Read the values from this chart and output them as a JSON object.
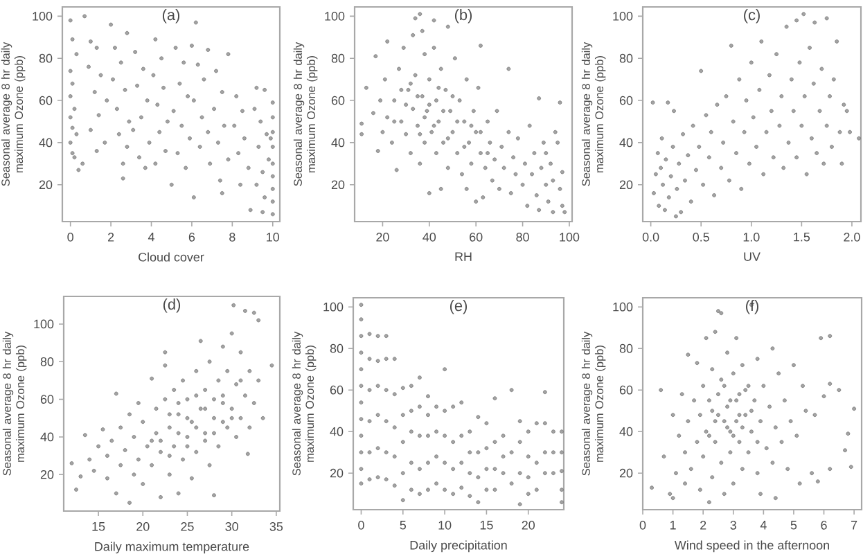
{
  "chart_data": [
    {
      "type": "scatter",
      "title": "(a)",
      "xlabel": "Cloud cover",
      "ylabel": "Seasonal average 8 hr daily maximum Ozone (ppb)",
      "color": "#6b6b6b",
      "marker": "circle",
      "xlim": [
        -0.4,
        10.35
      ],
      "ylim": [
        2.5,
        104.4
      ],
      "xticks": [
        0,
        2,
        4,
        6,
        8,
        10
      ],
      "yticks": [
        20,
        40,
        60,
        80,
        100
      ],
      "x": [
        0.0,
        0.7,
        0.1,
        0.3,
        0.0,
        0.1,
        0.0,
        0.2,
        0.0,
        0.1,
        0.3,
        0.0,
        0.1,
        0.2,
        0.6,
        0.4,
        1.0,
        1.3,
        0.9,
        1.5,
        1.2,
        1.8,
        1.4,
        1.0,
        1.7,
        1.3,
        2.0,
        2.2,
        2.5,
        2.1,
        2.7,
        2.3,
        2.9,
        2.4,
        2.8,
        2.6,
        2.6,
        2.8,
        3.2,
        3.6,
        3.3,
        3.8,
        3.5,
        3.1,
        3.9,
        3.4,
        3.7,
        4.2,
        4.5,
        4.1,
        4.6,
        4.3,
        4.8,
        4.4,
        4.7,
        4.2,
        5.0,
        5.2,
        5.6,
        5.4,
        5.8,
        5.1,
        5.5,
        5.9,
        5.3,
        5.7,
        6.2,
        6.0,
        6.3,
        6.6,
        6.1,
        6.5,
        6.8,
        6.4,
        6.9,
        6.1,
        6.8,
        7.2,
        7.5,
        7.1,
        7.6,
        7.3,
        7.8,
        7.4,
        7.5,
        7.8,
        8.2,
        8.5,
        8.1,
        8.6,
        8.3,
        8.8,
        8.4,
        8.9,
        9.2,
        9.6,
        9.1,
        9.4,
        9.7,
        9.3,
        9.8,
        9.5,
        9.2,
        9.6,
        9.5,
        10.0,
        10.0,
        10.0,
        10.0,
        10.0,
        10.0,
        10.0,
        10.0,
        10.0,
        9.9
      ],
      "values": [
        98,
        100,
        89,
        82,
        74,
        68,
        62,
        56,
        52,
        47,
        44,
        40,
        35,
        33,
        30,
        27,
        88,
        85,
        76,
        72,
        64,
        60,
        53,
        46,
        40,
        36,
        96,
        85,
        78,
        70,
        65,
        56,
        50,
        44,
        38,
        30,
        23,
        92,
        83,
        75,
        67,
        60,
        52,
        46,
        40,
        33,
        28,
        89,
        80,
        72,
        66,
        58,
        50,
        45,
        36,
        30,
        20,
        85,
        78,
        68,
        62,
        55,
        48,
        42,
        35,
        28,
        97,
        86,
        77,
        70,
        60,
        52,
        45,
        38,
        30,
        14,
        84,
        74,
        64,
        56,
        48,
        40,
        32,
        22,
        16,
        82,
        62,
        55,
        48,
        42,
        35,
        28,
        20,
        8,
        66,
        65,
        56,
        50,
        44,
        38,
        32,
        26,
        20,
        14,
        7,
        59,
        52,
        45,
        38,
        30,
        24,
        18,
        12,
        6,
        42
      ]
    },
    {
      "type": "scatter",
      "title": "(b)",
      "xlabel": "RH",
      "ylabel": "Seasonal average 8 hr daily maximum Ozone (ppb)",
      "color": "#6b6b6b",
      "marker": "circle",
      "xlim": [
        8,
        101.2
      ],
      "ylim": [
        2.5,
        104.4
      ],
      "xticks": [
        20,
        40,
        60,
        80,
        100
      ],
      "yticks": [
        20,
        40,
        60,
        80,
        100
      ],
      "x": [
        11,
        11,
        13,
        16,
        17,
        18,
        19,
        20,
        21,
        22,
        22,
        24,
        25,
        26,
        27,
        28,
        29,
        30,
        31,
        32,
        33,
        33,
        34,
        34,
        35,
        36,
        36,
        37,
        37,
        38,
        38,
        39,
        40,
        40,
        41,
        42,
        42,
        43,
        43,
        44,
        45,
        45,
        46,
        47,
        48,
        48,
        49,
        50,
        51,
        52,
        53,
        54,
        55,
        56,
        56,
        57,
        58,
        59,
        60,
        60,
        61,
        62,
        62,
        63,
        64,
        65,
        66,
        67,
        68,
        69,
        70,
        71,
        72,
        74,
        74,
        75,
        76,
        77,
        78,
        80,
        81,
        82,
        83,
        84,
        85,
        86,
        87,
        87,
        88,
        89,
        90,
        90,
        91,
        92,
        93,
        93,
        94,
        95,
        96,
        96,
        97,
        98,
        97,
        30,
        32,
        35,
        38,
        40,
        42,
        44,
        46,
        50,
        52,
        28,
        25,
        48,
        36,
        55,
        58,
        62,
        65
      ],
      "values": [
        49,
        44,
        66,
        54,
        81,
        36,
        60,
        45,
        70,
        52,
        88,
        40,
        60,
        27,
        75,
        50,
        85,
        44,
        65,
        35,
        91,
        56,
        99,
        72,
        48,
        101,
        30,
        93,
        62,
        82,
        40,
        55,
        16,
        70,
        45,
        98,
        85,
        60,
        35,
        50,
        18,
        75,
        40,
        65,
        95,
        28,
        55,
        45,
        80,
        35,
        60,
        25,
        50,
        18,
        70,
        40,
        30,
        55,
        12,
        45,
        66,
        86,
        35,
        14,
        28,
        50,
        40,
        22,
        32,
        55,
        18,
        38,
        28,
        75,
        45,
        16,
        33,
        25,
        42,
        20,
        30,
        10,
        48,
        25,
        35,
        15,
        61,
        8,
        28,
        40,
        20,
        35,
        12,
        30,
        7,
        22,
        45,
        40,
        59,
        18,
        10,
        7,
        26,
        58,
        68,
        62,
        52,
        58,
        48,
        66,
        55,
        62,
        50,
        65,
        50,
        42,
        44,
        38,
        48,
        45,
        35
      ]
    },
    {
      "type": "scatter",
      "title": "(c)",
      "xlabel": "UV",
      "ylabel": "Seasonal average 8 hr daily maximum Ozone (ppb)",
      "color": "#6b6b6b",
      "marker": "circle",
      "xlim": [
        -0.08,
        2.09
      ],
      "ylim": [
        2.5,
        104.4
      ],
      "xticks": [
        {
          "value": 0,
          "label": "0.0"
        },
        0.5,
        {
          "value": 1,
          "label": "1.0"
        },
        1.5,
        {
          "value": 2,
          "label": "2.0"
        }
      ],
      "yticks": [
        20,
        40,
        60,
        80,
        100
      ],
      "x": [
        0.02,
        0.03,
        0.05,
        0.07,
        0.08,
        0.1,
        0.11,
        0.12,
        0.14,
        0.15,
        0.17,
        0.18,
        0.2,
        0.22,
        0.23,
        0.25,
        0.26,
        0.28,
        0.3,
        0.32,
        0.34,
        0.37,
        0.4,
        0.42,
        0.45,
        0.48,
        0.5,
        0.52,
        0.55,
        0.58,
        0.6,
        0.63,
        0.66,
        0.7,
        0.72,
        0.75,
        0.78,
        0.8,
        0.82,
        0.85,
        0.88,
        0.9,
        0.93,
        0.95,
        0.98,
        1.0,
        1.02,
        1.05,
        1.08,
        1.1,
        1.12,
        1.15,
        1.18,
        1.2,
        1.22,
        1.25,
        1.28,
        1.3,
        1.32,
        1.35,
        1.37,
        1.4,
        1.42,
        1.45,
        1.45,
        1.48,
        1.5,
        1.52,
        1.53,
        1.55,
        1.58,
        1.6,
        1.62,
        1.63,
        1.65,
        1.68,
        1.7,
        1.72,
        1.75,
        1.75,
        1.78,
        1.8,
        1.82,
        1.85,
        1.88,
        1.9,
        1.92,
        1.95,
        1.98,
        2.07
      ],
      "values": [
        59,
        16,
        25,
        35,
        10,
        28,
        42,
        20,
        8,
        32,
        59,
        14,
        24,
        38,
        55,
        5,
        18,
        30,
        7,
        44,
        22,
        34,
        12,
        48,
        27,
        38,
        74,
        20,
        53,
        33,
        45,
        15,
        58,
        28,
        40,
        62,
        22,
        86,
        50,
        35,
        70,
        18,
        45,
        60,
        30,
        78,
        52,
        38,
        65,
        88,
        25,
        45,
        72,
        55,
        33,
        82,
        48,
        62,
        28,
        95,
        40,
        70,
        55,
        98,
        33,
        78,
        48,
        101,
        62,
        25,
        85,
        42,
        68,
        97,
        35,
        55,
        75,
        30,
        99,
        48,
        62,
        38,
        70,
        88,
        45,
        30,
        58,
        55,
        45,
        42
      ]
    },
    {
      "type": "scatter",
      "title": "(d)",
      "xlabel": "Daily maximum temperature",
      "ylabel": "Seasonal average 8 hr daily maximum Ozone (ppb)",
      "color": "#6b6b6b",
      "marker": "circle",
      "xlim": [
        11.1,
        35.4
      ],
      "ylim": [
        0.6,
        114.7
      ],
      "xticks": [
        15,
        20,
        25,
        30,
        35
      ],
      "yticks": [
        20,
        40,
        60,
        80,
        100
      ],
      "x": [
        12.0,
        12.5,
        13.0,
        13.5,
        14.0,
        14.5,
        15.0,
        15.5,
        16.0,
        16.0,
        16.5,
        17.0,
        17.0,
        17.5,
        17.5,
        18.0,
        18.5,
        18.5,
        19.0,
        19.0,
        19.5,
        19.5,
        20.0,
        20.0,
        20.5,
        21.0,
        21.0,
        21.5,
        21.5,
        22.0,
        22.0,
        22.5,
        22.5,
        22.5,
        23.0,
        23.0,
        23.5,
        23.5,
        24.0,
        24.0,
        24.5,
        24.5,
        25.0,
        25.0,
        25.5,
        25.5,
        26.0,
        26.0,
        26.5,
        26.5,
        27.0,
        27.0,
        27.5,
        27.5,
        28.0,
        28.0,
        28.5,
        28.5,
        29.0,
        29.0,
        29.5,
        29.5,
        30.0,
        30.0,
        30.2,
        30.5,
        30.5,
        31.0,
        31.0,
        31.5,
        31.5,
        31.8,
        32.0,
        32.0,
        32.5,
        32.5,
        33.0,
        33.0,
        33.5,
        34.5,
        22,
        23,
        24,
        25,
        26,
        27,
        28,
        29,
        24,
        26,
        28,
        30,
        21,
        23,
        25,
        27,
        29,
        31
      ],
      "values": [
        26,
        12,
        19,
        41,
        28,
        22,
        35,
        44,
        18,
        30,
        38,
        63,
        10,
        25,
        45,
        33,
        5,
        52,
        20,
        40,
        28,
        58,
        15,
        48,
        35,
        71,
        25,
        55,
        42,
        8,
        32,
        85,
        78,
        60,
        20,
        45,
        65,
        35,
        10,
        52,
        28,
        70,
        40,
        60,
        18,
        48,
        75,
        32,
        55,
        91,
        42,
        65,
        25,
        80,
        9,
        50,
        70,
        35,
        58,
        88,
        45,
        75,
        95,
        55,
        110,
        40,
        68,
        85,
        50,
        107,
        62,
        31,
        75,
        45,
        106,
        58,
        102,
        70,
        50,
        78,
        38,
        52,
        42,
        35,
        45,
        55,
        60,
        62,
        58,
        62,
        42,
        50,
        38,
        30,
        50,
        38,
        48,
        70
      ]
    },
    {
      "type": "scatter",
      "title": "(e)",
      "xlabel": "Daily precipitation",
      "ylabel": "Seasonal average 8 hr daily maximum Ozone (ppb)",
      "color": "#6b6b6b",
      "marker": "circle",
      "xlim": [
        -0.95,
        24.25
      ],
      "ylim": [
        2.4,
        104.4
      ],
      "xticks": [
        0,
        5,
        10,
        15,
        20
      ],
      "yticks": [
        20,
        40,
        60,
        80,
        100
      ],
      "x": [
        0,
        0,
        0,
        0,
        0,
        0,
        0,
        0,
        0,
        0,
        0,
        0,
        1,
        1,
        1,
        1,
        1,
        1,
        2,
        2,
        2,
        2,
        2,
        2,
        3,
        3,
        3,
        3,
        3,
        3,
        4,
        4,
        4,
        4,
        4,
        5,
        5,
        5,
        5,
        5,
        6,
        6,
        6,
        6,
        6,
        7,
        7,
        7,
        7,
        7,
        8,
        8,
        8,
        8,
        8,
        9,
        9,
        9,
        9,
        10,
        10,
        10,
        10,
        10,
        11,
        11,
        11,
        11,
        12,
        12,
        12,
        12,
        13,
        13,
        13,
        13,
        14,
        14,
        14,
        14,
        15,
        15,
        15,
        15,
        16,
        16,
        16,
        16,
        17,
        17,
        17,
        18,
        18,
        18,
        19,
        19,
        19,
        19,
        20,
        20,
        20,
        20,
        21,
        21,
        21,
        22,
        22,
        22,
        22,
        23,
        23,
        23,
        24,
        24,
        24,
        24,
        24
      ],
      "values": [
        15,
        22,
        30,
        38,
        46,
        54,
        62,
        70,
        78,
        86,
        94,
        101,
        17,
        30,
        45,
        60,
        75,
        87,
        18,
        32,
        48,
        62,
        74,
        86,
        17,
        30,
        45,
        60,
        75,
        86,
        14,
        28,
        42,
        58,
        75,
        7,
        20,
        35,
        48,
        61,
        12,
        25,
        40,
        50,
        62,
        10,
        22,
        38,
        52,
        66,
        12,
        25,
        38,
        48,
        57,
        15,
        28,
        40,
        52,
        12,
        25,
        38,
        50,
        70,
        10,
        22,
        35,
        52,
        13,
        25,
        38,
        54,
        9,
        20,
        30,
        40,
        6,
        18,
        30,
        47,
        12,
        22,
        32,
        44,
        12,
        22,
        35,
        56,
        20,
        28,
        38,
        15,
        30,
        60,
        5,
        20,
        35,
        45,
        10,
        18,
        28,
        40,
        12,
        25,
        44,
        20,
        30,
        44,
        59,
        20,
        30,
        40,
        6,
        12,
        21,
        30,
        40
      ]
    },
    {
      "type": "scatter",
      "title": "(f)",
      "xlabel": "Wind speed in the afternoon",
      "ylabel": "Seasonal average 8 hr daily maximum Ozone (ppb)",
      "color": "#6b6b6b",
      "marker": "circle",
      "xlim": [
        0,
        7.25
      ],
      "ylim": [
        2.4,
        104.4
      ],
      "xticks": [
        0,
        1,
        2,
        3,
        4,
        5,
        6,
        7
      ],
      "yticks": [
        20,
        40,
        60,
        80,
        100
      ],
      "x": [
        0.3,
        0.6,
        0.7,
        0.9,
        1.0,
        1.0,
        1.1,
        1.2,
        1.3,
        1.4,
        1.4,
        1.5,
        1.5,
        1.6,
        1.7,
        1.8,
        1.8,
        1.9,
        1.9,
        2.0,
        2.0,
        2.1,
        2.1,
        2.2,
        2.2,
        2.3,
        2.3,
        2.4,
        2.4,
        2.5,
        2.5,
        2.6,
        2.6,
        2.7,
        2.7,
        2.8,
        2.8,
        2.9,
        2.9,
        3.0,
        3.0,
        3.1,
        3.1,
        3.2,
        3.2,
        3.3,
        3.3,
        3.4,
        3.5,
        3.5,
        3.6,
        3.6,
        3.7,
        3.8,
        3.8,
        3.9,
        3.9,
        4.0,
        4.1,
        4.2,
        4.3,
        4.3,
        4.4,
        4.4,
        4.5,
        4.6,
        4.7,
        4.8,
        4.9,
        5.0,
        5.1,
        5.2,
        5.3,
        5.4,
        5.6,
        5.7,
        5.8,
        5.9,
        6.0,
        6.2,
        6.2,
        6.2,
        6.5,
        6.7,
        6.8,
        6.9,
        7.0,
        2.3,
        2.5,
        2.7,
        2.9,
        3.1,
        3.3,
        2.6,
        2.8,
        3.0,
        3.2,
        3.4,
        2.4,
        2.2,
        3.6,
        3.8
      ],
      "values": [
        13,
        60,
        28,
        10,
        8,
        48,
        20,
        38,
        58,
        15,
        30,
        77,
        45,
        22,
        55,
        35,
        73,
        12,
        48,
        62,
        28,
        85,
        40,
        6,
        55,
        18,
        70,
        35,
        88,
        98,
        48,
        97,
        25,
        62,
        10,
        42,
        78,
        30,
        55,
        68,
        15,
        45,
        85,
        35,
        58,
        22,
        72,
        48,
        62,
        30,
        101,
        40,
        55,
        20,
        75,
        10,
        45,
        62,
        32,
        52,
        80,
        25,
        8,
        42,
        68,
        35,
        55,
        22,
        45,
        72,
        38,
        15,
        62,
        50,
        20,
        48,
        16,
        85,
        57,
        86,
        63,
        22,
        60,
        31,
        39,
        23,
        51,
        50,
        58,
        45,
        40,
        55,
        42,
        65,
        52,
        38,
        48,
        60,
        45,
        38,
        50,
        35
      ]
    }
  ]
}
